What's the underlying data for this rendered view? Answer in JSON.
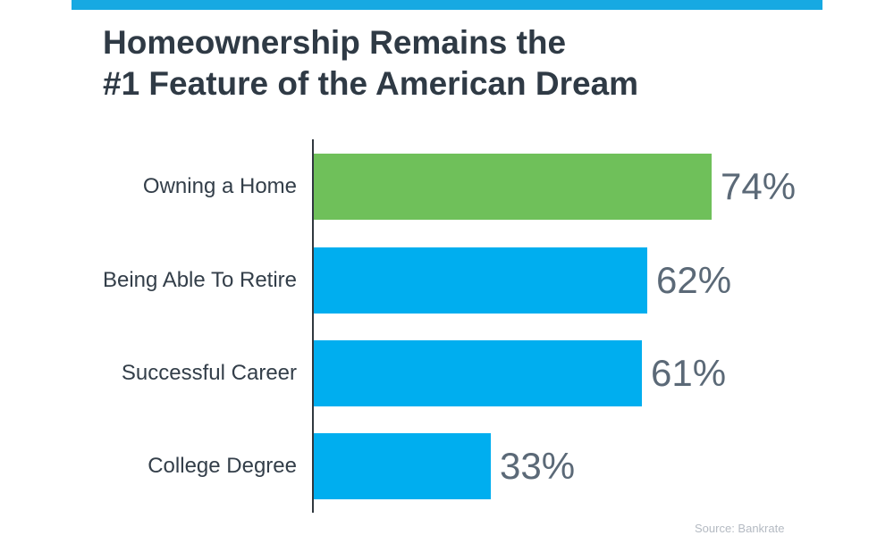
{
  "header": {
    "title_line1": "Homeownership Remains the",
    "title_line2": "#1 Feature of the American Dream"
  },
  "footer": {
    "source": "Source: Bankrate"
  },
  "accent": {
    "stripe_color": "#17A9E2"
  },
  "chart_data": {
    "type": "bar",
    "orientation": "horizontal",
    "title": "Homeownership Remains the #1 Feature of the American Dream",
    "categories": [
      "Owning a Home",
      "Being Able To Retire",
      "Successful Career",
      "College Degree"
    ],
    "values": [
      74,
      62,
      61,
      33
    ],
    "value_labels": [
      "74%",
      "62%",
      "61%",
      "33%"
    ],
    "highlight_index": 0,
    "xlim": [
      0,
      100
    ],
    "grid": false,
    "legend": false,
    "colors": {
      "highlight_bar": "#6FC05A",
      "default_bar": "#00AEEF",
      "value_label": "#5B6977",
      "category_label": "#333E49",
      "axis": "#30383F",
      "title": "#2F3A45",
      "source": "#B4BAC2"
    },
    "source": "Source: Bankrate"
  }
}
